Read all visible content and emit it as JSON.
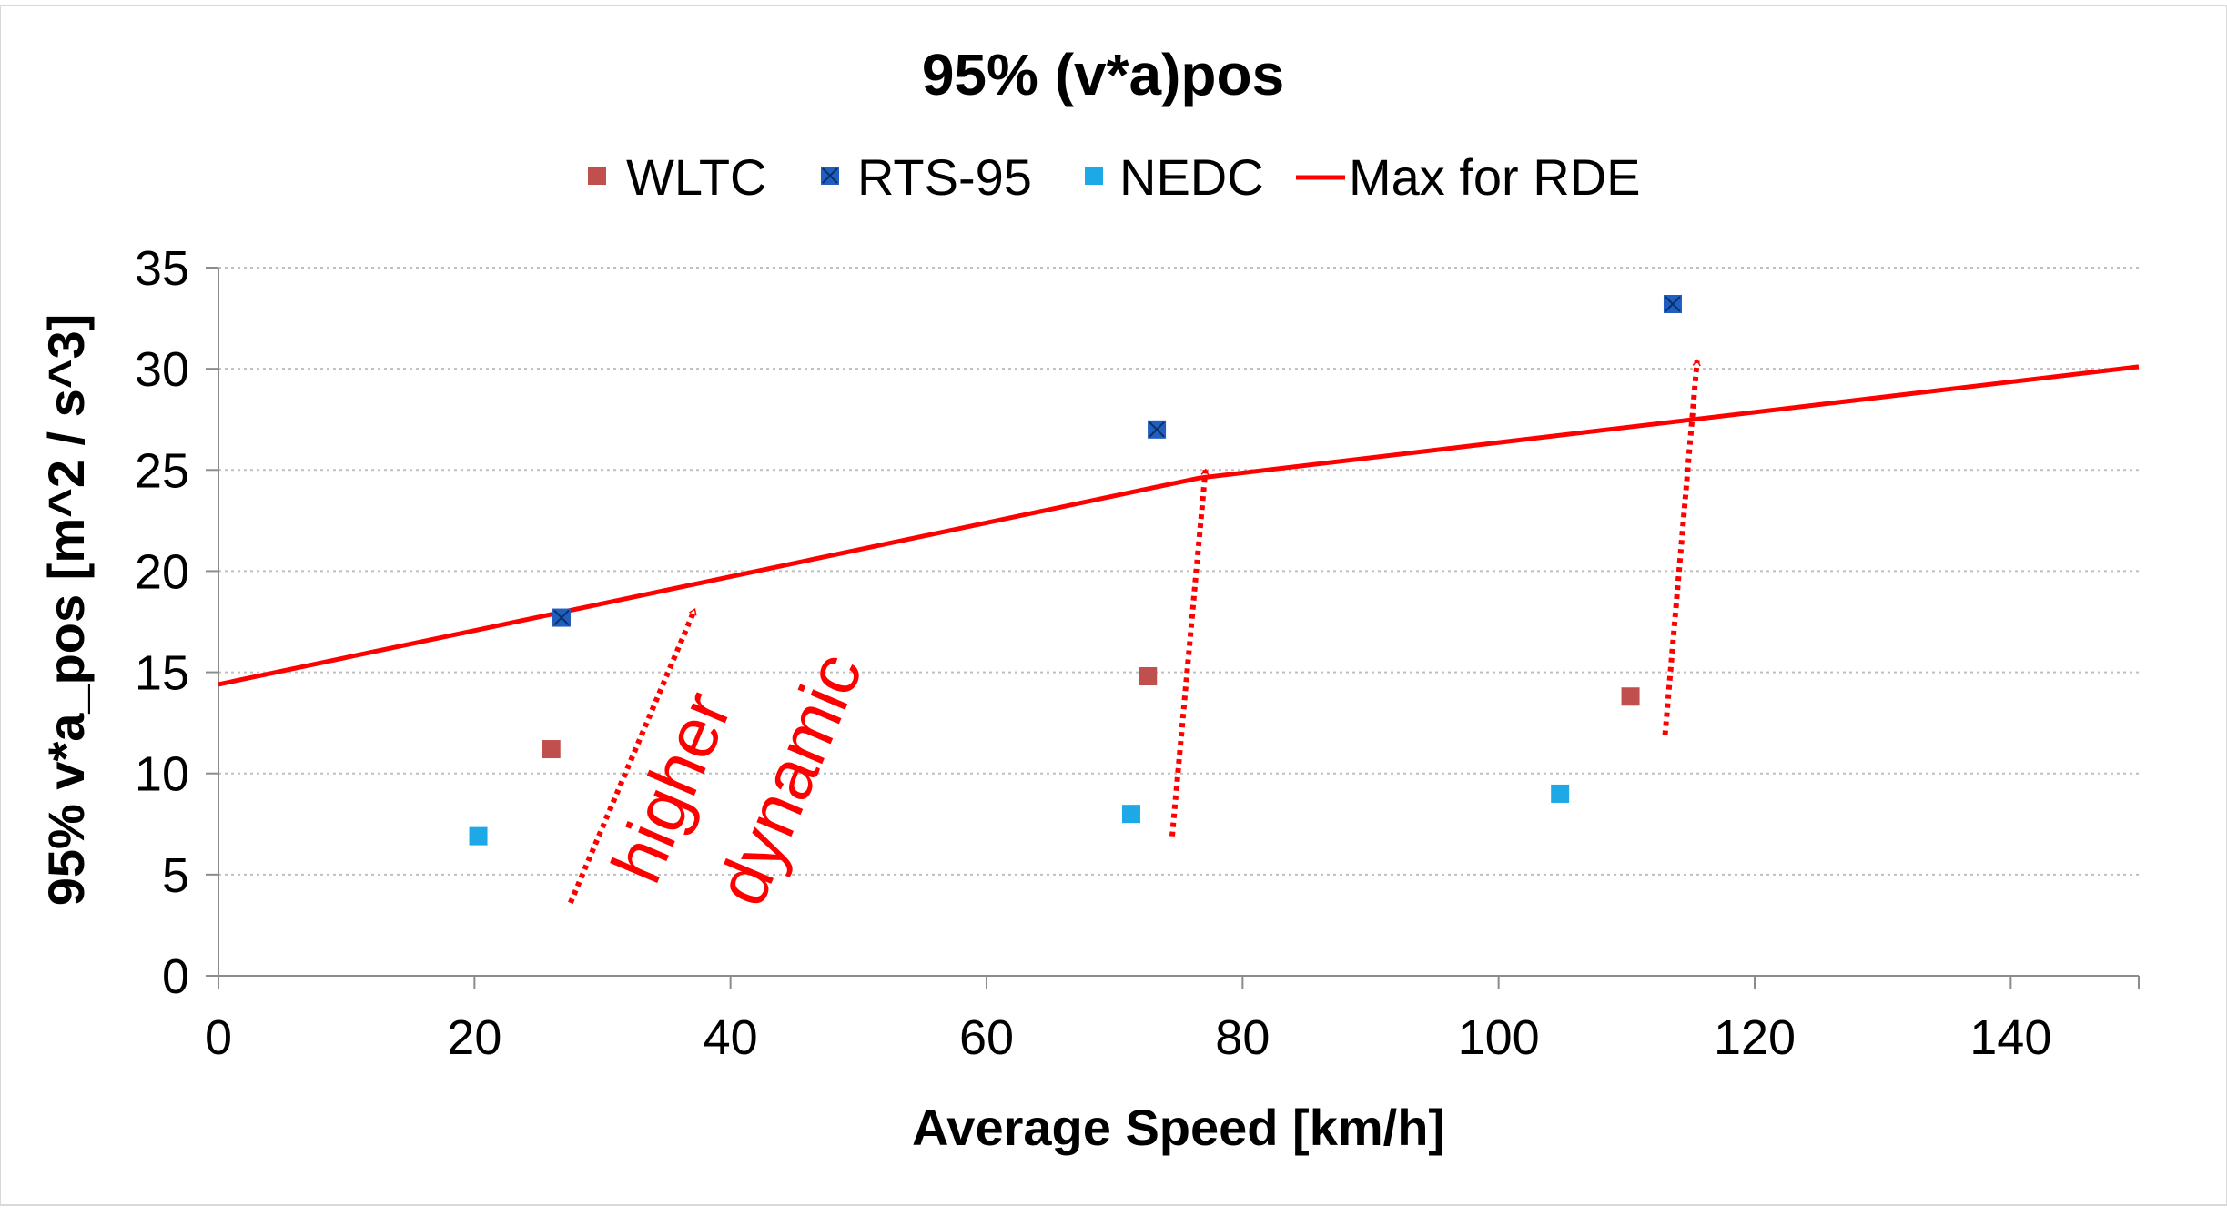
{
  "chart_data": {
    "type": "scatter",
    "title": "95% (v*a)pos",
    "xlabel": "Average Speed [km/h]",
    "ylabel": "95% v*a_pos [m^2 / s^3]",
    "xlim": [
      0,
      150
    ],
    "ylim": [
      0,
      35
    ],
    "xticks": [
      0,
      20,
      40,
      60,
      80,
      100,
      120,
      140
    ],
    "yticks": [
      0,
      5,
      10,
      15,
      20,
      25,
      30,
      35
    ],
    "grid": "horizontal-dotted",
    "legend_position": "top",
    "series": [
      {
        "name": "WLTC",
        "kind": "scatter",
        "color": "#c0504d",
        "marker": "square",
        "points": [
          [
            26,
            11.2
          ],
          [
            72.6,
            14.8
          ],
          [
            110.3,
            13.8
          ]
        ]
      },
      {
        "name": "RTS-95",
        "kind": "scatter",
        "color": "#1f5fbf",
        "marker": "square-x",
        "points": [
          [
            26.8,
            17.7
          ],
          [
            73.3,
            27.0
          ],
          [
            113.6,
            33.2
          ]
        ]
      },
      {
        "name": "NEDC",
        "kind": "scatter",
        "color": "#1ca9e6",
        "marker": "square",
        "points": [
          [
            20.3,
            6.9
          ],
          [
            71.3,
            8.0
          ],
          [
            104.8,
            9.0
          ]
        ]
      },
      {
        "name": "Max for RDE",
        "kind": "line",
        "color": "#ff0000",
        "points": [
          [
            0,
            14.4
          ],
          [
            76.6,
            24.6
          ],
          [
            150,
            30.1
          ]
        ]
      }
    ],
    "annotations": [
      {
        "text": "higher",
        "second_line": "dynamic",
        "color": "#ff0000",
        "arrows": [
          [
            [
              27.5,
              3.6
            ],
            [
              37.2,
              18.1
            ]
          ],
          [
            [
              74.5,
              6.9
            ],
            [
              77.1,
              25.0
            ]
          ],
          [
            [
              113.0,
              11.9
            ],
            [
              115.5,
              30.4
            ]
          ]
        ]
      }
    ]
  }
}
